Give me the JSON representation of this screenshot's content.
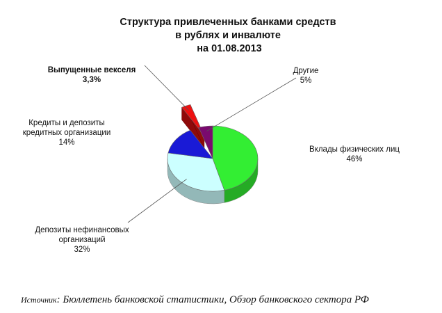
{
  "chart_data": {
    "type": "pie",
    "title": [
      "Структура привлеченных банками средств",
      "в рублях и инвалюте",
      "на 01.08.2013"
    ],
    "slices": [
      {
        "label": [
          "Вклады физических лиц"
        ],
        "value_label": "46%",
        "value": 46,
        "color": "#33ee33"
      },
      {
        "label": [
          "Депозиты нефинансовых",
          "организаций"
        ],
        "value_label": "32%",
        "value": 32,
        "color": "#ccffff"
      },
      {
        "label": [
          "Кредиты и депозиты",
          "кредитных организации"
        ],
        "value_label": "14%",
        "value": 14,
        "color": "#1a1ad6"
      },
      {
        "label": [
          "Выпущенные векселя"
        ],
        "value_label": "3,3%",
        "value": 3.3,
        "color": "#ee1111",
        "bold": true,
        "exploded": true
      },
      {
        "label": [
          "Другие"
        ],
        "value_label": "5%",
        "value": 5,
        "color": "#7a0a6e"
      }
    ]
  },
  "source": {
    "prefix": "Источник",
    "text": ": Бюллетень банковской статистики, Обзор банковского сектора РФ"
  }
}
